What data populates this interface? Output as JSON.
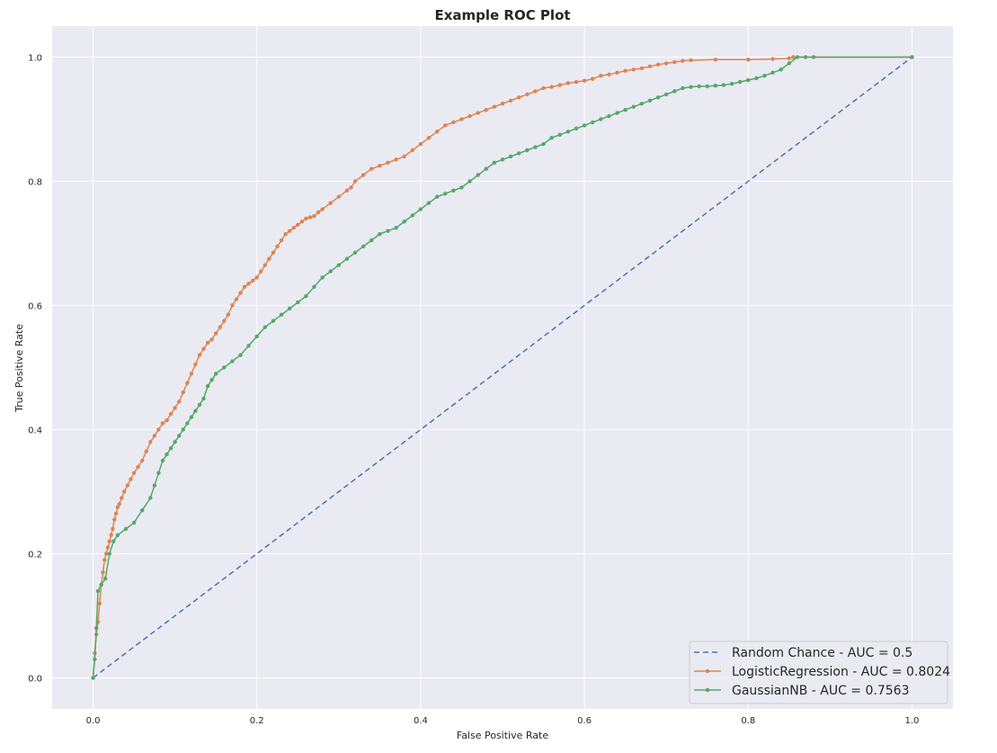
{
  "chart_data": {
    "type": "line",
    "title": "Example ROC Plot",
    "xlabel": "False Positive Rate",
    "ylabel": "True Positive Rate",
    "xlim": [
      -0.05,
      1.05
    ],
    "ylim": [
      -0.05,
      1.05
    ],
    "xticks": [
      "0.0",
      "0.2",
      "0.4",
      "0.6",
      "0.8",
      "1.0"
    ],
    "yticks": [
      "0.0",
      "0.2",
      "0.4",
      "0.6",
      "0.8",
      "1.0"
    ],
    "grid": true,
    "legend_position": "lower-right",
    "series": [
      {
        "name": "Random Chance - AUC = 0.5",
        "color": "#4c72b0",
        "style": "dashed",
        "marker": false,
        "x": [
          0.0,
          1.0
        ],
        "y": [
          0.0,
          1.0
        ]
      },
      {
        "name": "LogisticRegression - AUC = 0.8024",
        "color": "#dd8452",
        "style": "solid",
        "marker": true,
        "x": [
          0.0,
          0.002,
          0.004,
          0.006,
          0.008,
          0.01,
          0.012,
          0.014,
          0.016,
          0.018,
          0.02,
          0.022,
          0.024,
          0.026,
          0.028,
          0.03,
          0.032,
          0.035,
          0.038,
          0.042,
          0.046,
          0.05,
          0.055,
          0.06,
          0.065,
          0.07,
          0.075,
          0.08,
          0.085,
          0.09,
          0.095,
          0.1,
          0.105,
          0.11,
          0.115,
          0.12,
          0.125,
          0.13,
          0.135,
          0.14,
          0.145,
          0.15,
          0.155,
          0.16,
          0.165,
          0.17,
          0.175,
          0.18,
          0.185,
          0.19,
          0.195,
          0.2,
          0.205,
          0.21,
          0.215,
          0.22,
          0.225,
          0.23,
          0.235,
          0.24,
          0.245,
          0.25,
          0.255,
          0.26,
          0.265,
          0.27,
          0.275,
          0.28,
          0.29,
          0.3,
          0.31,
          0.315,
          0.32,
          0.33,
          0.34,
          0.35,
          0.36,
          0.37,
          0.38,
          0.39,
          0.4,
          0.41,
          0.42,
          0.43,
          0.44,
          0.45,
          0.46,
          0.47,
          0.48,
          0.49,
          0.5,
          0.51,
          0.52,
          0.53,
          0.54,
          0.55,
          0.56,
          0.57,
          0.58,
          0.59,
          0.6,
          0.61,
          0.62,
          0.63,
          0.64,
          0.65,
          0.66,
          0.67,
          0.68,
          0.69,
          0.7,
          0.71,
          0.72,
          0.73,
          0.76,
          0.8,
          0.83,
          0.85,
          0.855,
          1.0
        ],
        "y": [
          0.0,
          0.04,
          0.07,
          0.09,
          0.12,
          0.15,
          0.17,
          0.19,
          0.2,
          0.21,
          0.22,
          0.23,
          0.24,
          0.255,
          0.265,
          0.275,
          0.28,
          0.29,
          0.3,
          0.31,
          0.32,
          0.33,
          0.34,
          0.35,
          0.365,
          0.38,
          0.39,
          0.4,
          0.41,
          0.415,
          0.425,
          0.435,
          0.445,
          0.46,
          0.475,
          0.49,
          0.505,
          0.52,
          0.53,
          0.54,
          0.545,
          0.555,
          0.565,
          0.575,
          0.585,
          0.6,
          0.61,
          0.62,
          0.63,
          0.635,
          0.64,
          0.645,
          0.655,
          0.665,
          0.675,
          0.685,
          0.695,
          0.705,
          0.715,
          0.72,
          0.725,
          0.73,
          0.735,
          0.74,
          0.742,
          0.744,
          0.75,
          0.755,
          0.765,
          0.775,
          0.785,
          0.79,
          0.8,
          0.81,
          0.82,
          0.825,
          0.83,
          0.835,
          0.84,
          0.85,
          0.86,
          0.87,
          0.88,
          0.89,
          0.895,
          0.9,
          0.905,
          0.91,
          0.915,
          0.92,
          0.925,
          0.93,
          0.935,
          0.94,
          0.945,
          0.95,
          0.952,
          0.955,
          0.958,
          0.96,
          0.962,
          0.965,
          0.97,
          0.972,
          0.975,
          0.978,
          0.98,
          0.982,
          0.985,
          0.988,
          0.99,
          0.992,
          0.994,
          0.995,
          0.996,
          0.996,
          0.997,
          0.998,
          1.0,
          1.0
        ]
      },
      {
        "name": "GaussianNB - AUC = 0.7563",
        "color": "#55a868",
        "style": "solid",
        "marker": true,
        "x": [
          0.0,
          0.002,
          0.004,
          0.006,
          0.01,
          0.015,
          0.02,
          0.025,
          0.03,
          0.04,
          0.05,
          0.06,
          0.07,
          0.075,
          0.08,
          0.085,
          0.09,
          0.095,
          0.1,
          0.105,
          0.11,
          0.115,
          0.12,
          0.125,
          0.13,
          0.135,
          0.14,
          0.145,
          0.15,
          0.16,
          0.17,
          0.18,
          0.19,
          0.2,
          0.21,
          0.22,
          0.23,
          0.24,
          0.25,
          0.26,
          0.27,
          0.28,
          0.29,
          0.3,
          0.31,
          0.32,
          0.33,
          0.34,
          0.35,
          0.36,
          0.37,
          0.38,
          0.39,
          0.4,
          0.41,
          0.42,
          0.43,
          0.44,
          0.45,
          0.46,
          0.47,
          0.48,
          0.49,
          0.5,
          0.51,
          0.52,
          0.53,
          0.54,
          0.55,
          0.56,
          0.57,
          0.58,
          0.59,
          0.6,
          0.61,
          0.62,
          0.63,
          0.64,
          0.65,
          0.66,
          0.67,
          0.68,
          0.69,
          0.7,
          0.71,
          0.72,
          0.73,
          0.74,
          0.75,
          0.76,
          0.77,
          0.78,
          0.79,
          0.8,
          0.81,
          0.82,
          0.83,
          0.84,
          0.85,
          0.86,
          0.87,
          0.88,
          1.0
        ],
        "y": [
          0.0,
          0.03,
          0.08,
          0.14,
          0.15,
          0.16,
          0.2,
          0.22,
          0.23,
          0.24,
          0.25,
          0.27,
          0.29,
          0.31,
          0.33,
          0.35,
          0.36,
          0.37,
          0.38,
          0.39,
          0.4,
          0.41,
          0.42,
          0.43,
          0.44,
          0.45,
          0.47,
          0.48,
          0.49,
          0.5,
          0.51,
          0.52,
          0.535,
          0.55,
          0.565,
          0.575,
          0.585,
          0.595,
          0.605,
          0.615,
          0.63,
          0.645,
          0.655,
          0.665,
          0.675,
          0.685,
          0.695,
          0.705,
          0.715,
          0.72,
          0.725,
          0.735,
          0.745,
          0.755,
          0.765,
          0.775,
          0.78,
          0.785,
          0.79,
          0.8,
          0.81,
          0.82,
          0.83,
          0.835,
          0.84,
          0.845,
          0.85,
          0.855,
          0.86,
          0.87,
          0.875,
          0.88,
          0.885,
          0.89,
          0.895,
          0.9,
          0.905,
          0.91,
          0.915,
          0.92,
          0.925,
          0.93,
          0.935,
          0.94,
          0.945,
          0.95,
          0.952,
          0.953,
          0.953,
          0.954,
          0.955,
          0.957,
          0.96,
          0.963,
          0.966,
          0.97,
          0.975,
          0.98,
          0.99,
          1.0,
          1.0,
          1.0,
          1.0
        ]
      }
    ]
  }
}
